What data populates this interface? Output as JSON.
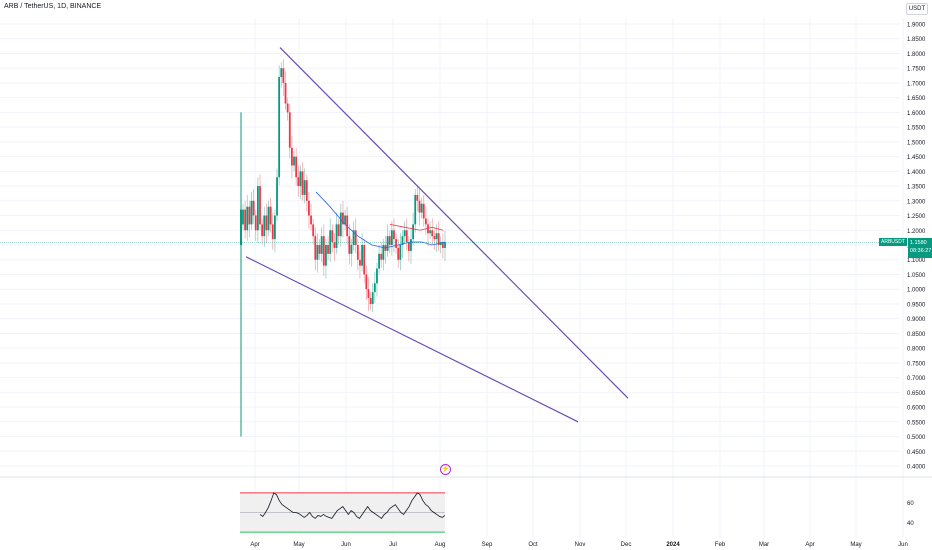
{
  "header": {
    "symbol_title": "ARB / TetherUS, 1D, BINANCE",
    "currency": "USDT"
  },
  "price_tag": {
    "symbol": "ARBUSDT",
    "price": "1.1580",
    "countdown": "08:36:27"
  },
  "colors": {
    "up": "#089981",
    "down": "#f23645",
    "trendline": "#6a4bb3",
    "ma": "#2962ff",
    "ma_secondary": "#f23645",
    "rsi_line": "#131722",
    "rsi_upper": "#f23645",
    "rsi_lower": "#22c55e",
    "grid": "#f0f3fa"
  },
  "icons": {
    "alert": "lightning-icon"
  },
  "chart_data": [
    {
      "type": "candlestick",
      "title": "ARB / TetherUS, 1D, BINANCE",
      "price_scale": {
        "ticks": [
          "1.9000",
          "1.8500",
          "1.8000",
          "1.7500",
          "1.7000",
          "1.6500",
          "1.6000",
          "1.5500",
          "1.5000",
          "1.4500",
          "1.4000",
          "1.3500",
          "1.3000",
          "1.2500",
          "1.2000",
          "1.1500",
          "1.1000",
          "1.0500",
          "1.0000",
          "0.9500",
          "0.9000",
          "0.8500",
          "0.8000",
          "0.7500",
          "0.7000",
          "0.6500",
          "0.6000",
          "0.5500",
          "0.5000",
          "0.4500",
          "0.4000"
        ],
        "range": [
          0.4,
          1.9
        ]
      },
      "time_axis": {
        "labels": [
          "Apr",
          "May",
          "Jun",
          "Jul",
          "Aug",
          "Sep",
          "Oct",
          "Nov",
          "Dec",
          "2024",
          "Feb",
          "Mar",
          "Apr",
          "May",
          "Jun",
          "Jul"
        ]
      },
      "last_price": 1.158,
      "first_candle": {
        "open": 1.15,
        "high": 1.6,
        "low": 0.5,
        "close": 1.27
      },
      "closes": [
        1.27,
        1.2,
        1.28,
        1.22,
        1.3,
        1.25,
        1.2,
        1.35,
        1.22,
        1.18,
        1.25,
        1.2,
        1.28,
        1.22,
        1.17,
        1.25,
        1.38,
        1.72,
        1.75,
        1.7,
        1.63,
        1.6,
        1.48,
        1.42,
        1.45,
        1.38,
        1.35,
        1.4,
        1.32,
        1.37,
        1.3,
        1.25,
        1.22,
        1.18,
        1.1,
        1.15,
        1.12,
        1.18,
        1.08,
        1.15,
        1.12,
        1.2,
        1.16,
        1.14,
        1.22,
        1.18,
        1.26,
        1.22,
        1.25,
        1.18,
        1.12,
        1.15,
        1.2,
        1.15,
        1.1,
        1.08,
        1.15,
        1.05,
        1.0,
        0.97,
        0.95,
        0.99,
        1.02,
        1.07,
        1.12,
        1.1,
        1.15,
        1.13,
        1.18,
        1.15,
        1.2,
        1.17,
        1.14,
        1.1,
        1.15,
        1.18,
        1.2,
        1.16,
        1.13,
        1.17,
        1.22,
        1.32,
        1.3,
        1.26,
        1.29,
        1.24,
        1.22,
        1.19,
        1.2,
        1.18,
        1.17,
        1.19,
        1.15,
        1.16,
        1.14,
        1.16
      ],
      "moving_average": {
        "blue": [
          [
            1.33,
            1.3
          ],
          [
            1.31,
            1.27
          ],
          [
            1.29,
            1.24
          ],
          [
            1.27,
            1.21
          ],
          [
            1.25,
            1.18
          ],
          [
            1.23,
            1.16
          ],
          [
            1.22,
            1.14
          ],
          [
            1.21,
            1.14
          ],
          [
            1.2,
            1.15
          ],
          [
            1.19,
            1.16
          ],
          [
            1.18,
            1.16
          ]
        ],
        "red_segment": "Jul–Aug"
      },
      "trendlines": [
        {
          "name": "upper",
          "from": {
            "date": "late Apr",
            "price": 1.82
          },
          "to": {
            "date": "Dec",
            "price": 0.63
          }
        },
        {
          "name": "lower",
          "from": {
            "date": "mid Mar",
            "price": 1.11
          },
          "to": {
            "date": "Nov",
            "price": 0.55
          }
        }
      ]
    },
    {
      "type": "line",
      "name": "RSI",
      "y_ticks": [
        "60",
        "40"
      ],
      "levels": {
        "upper": 70,
        "middle": 50,
        "lower": 30
      },
      "values": [
        48,
        46,
        50,
        55,
        62,
        70,
        68,
        62,
        58,
        56,
        54,
        52,
        50,
        50,
        49,
        47,
        45,
        47,
        50,
        46,
        44,
        47,
        46,
        48,
        46,
        45,
        44,
        48,
        52,
        54,
        56,
        52,
        48,
        52,
        50,
        46,
        44,
        48,
        52,
        56,
        52,
        50,
        48,
        46,
        44,
        48,
        50,
        54,
        56,
        58,
        54,
        50,
        48,
        52,
        56,
        62,
        66,
        70,
        68,
        62,
        58,
        56,
        52,
        50,
        48,
        46,
        45,
        47
      ]
    }
  ]
}
